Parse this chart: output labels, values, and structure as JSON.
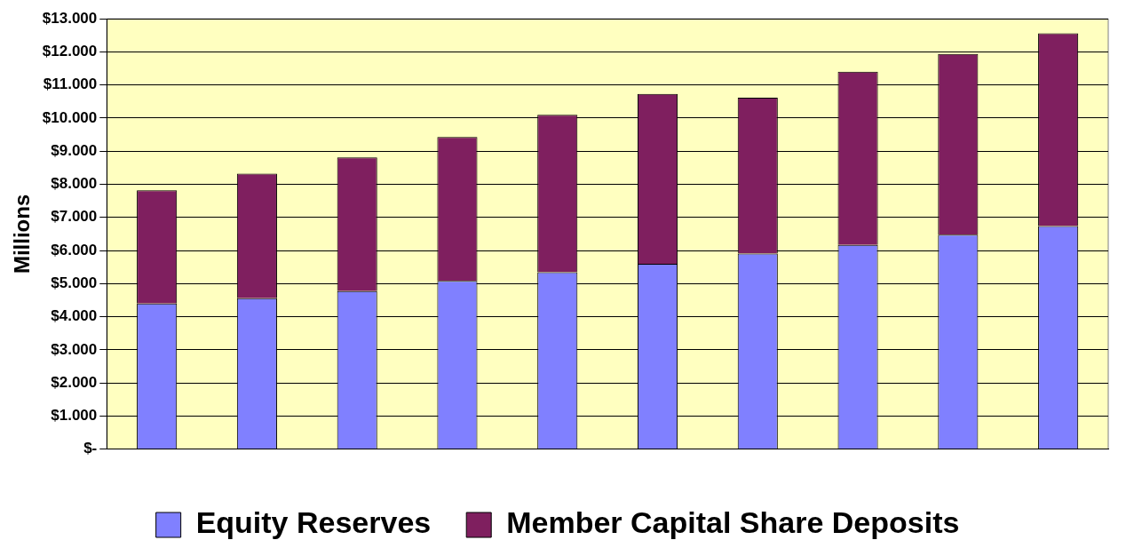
{
  "chart_data": {
    "type": "bar",
    "stacked": true,
    "ylabel": "Millions",
    "categories": [
      null,
      null,
      null,
      null,
      null,
      null,
      null,
      null,
      null,
      null
    ],
    "series": [
      {
        "name": "Equity Reserves",
        "color": "#8080ff",
        "values": [
          4400,
          4560,
          4770,
          5080,
          5340,
          5600,
          5910,
          6170,
          6480,
          6740
        ]
      },
      {
        "name": "Member Capital Share Deposits",
        "color": "#7f1f5f",
        "values": [
          3420,
          3760,
          4040,
          4350,
          4760,
          5130,
          4710,
          5230,
          5460,
          5820
        ]
      }
    ],
    "ylim": [
      0,
      13000
    ],
    "yticks": [
      {
        "value": 0,
        "label": "$-"
      },
      {
        "value": 1000,
        "label": "$1.000"
      },
      {
        "value": 2000,
        "label": "$2.000"
      },
      {
        "value": 3000,
        "label": "$3.000"
      },
      {
        "value": 4000,
        "label": "$4.000"
      },
      {
        "value": 5000,
        "label": "$5.000"
      },
      {
        "value": 6000,
        "label": "$6.000"
      },
      {
        "value": 7000,
        "label": "$7.000"
      },
      {
        "value": 8000,
        "label": "$8.000"
      },
      {
        "value": 9000,
        "label": "$9.000"
      },
      {
        "value": 10000,
        "label": "$10.000"
      },
      {
        "value": 11000,
        "label": "$11.000"
      },
      {
        "value": 12000,
        "label": "$12.000"
      },
      {
        "value": 13000,
        "label": "$13.000"
      }
    ],
    "grid": "y",
    "legend": "bottom"
  }
}
